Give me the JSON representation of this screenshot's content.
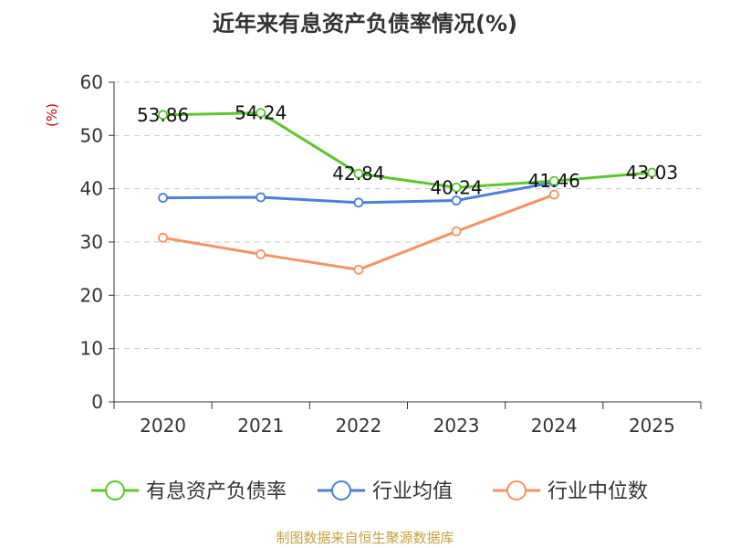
{
  "chart_data": {
    "type": "line",
    "title": "近年来有息资产负债率情况(%)",
    "unit_label": "(%)",
    "categories": [
      "2020",
      "2021",
      "2022",
      "2023",
      "2024",
      "2025"
    ],
    "ylim": [
      0,
      60
    ],
    "yticks": [
      0,
      10,
      20,
      30,
      40,
      50,
      60
    ],
    "grid": true,
    "legend_position": "bottom",
    "series": [
      {
        "name": "有息资产负债率",
        "color": "#5cc72a",
        "values": [
          53.86,
          54.24,
          42.84,
          40.24,
          41.46,
          43.03
        ],
        "labels": [
          "53.86",
          "54.24",
          "42.84",
          "40.24",
          "41.46",
          "43.03"
        ]
      },
      {
        "name": "行业均值",
        "color": "#4a7fdc",
        "values": [
          38.3,
          38.4,
          37.4,
          37.8,
          41.2,
          null
        ]
      },
      {
        "name": "行业中位数",
        "color": "#f59360",
        "values": [
          30.8,
          27.7,
          24.8,
          32.0,
          38.9,
          null
        ]
      }
    ]
  },
  "source": "制图数据来自恒生聚源数据库"
}
